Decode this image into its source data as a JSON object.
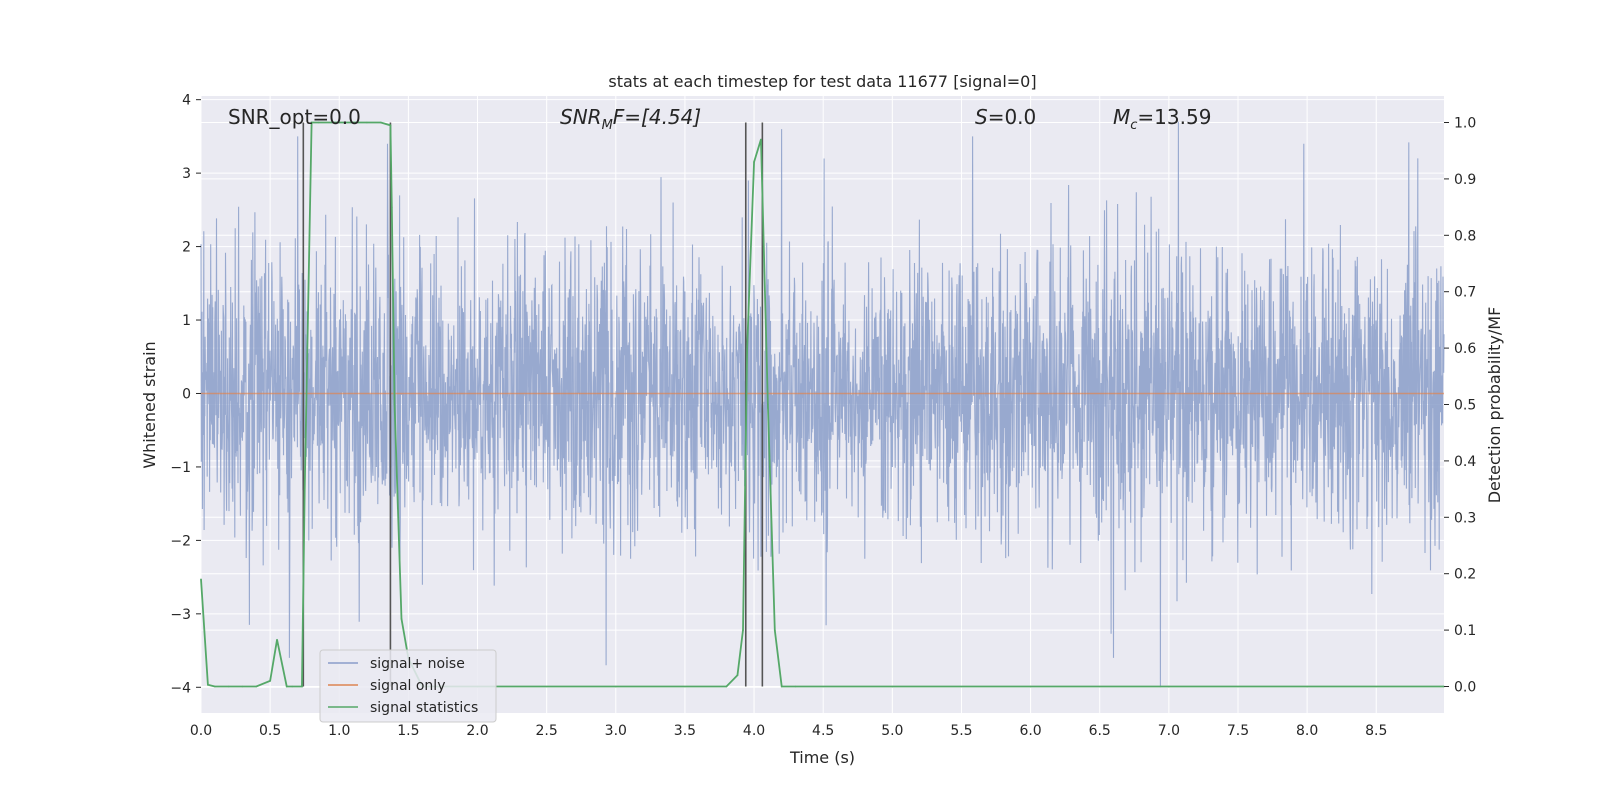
{
  "chart_data": {
    "type": "line",
    "title": "stats at each timestep for test data 11677 [signal=0]",
    "xlabel": "Time (s)",
    "ylabel": "Whitened strain",
    "ylabel_right": "Detection probability/MF",
    "xlim": [
      0.0,
      8.99
    ],
    "ylim_left": [
      -4.35,
      4.05
    ],
    "ylim_right": [
      -0.047,
      1.047
    ],
    "x_ticks": [
      "0.0",
      "0.5",
      "1.0",
      "1.5",
      "2.0",
      "2.5",
      "3.0",
      "3.5",
      "4.0",
      "4.5",
      "5.0",
      "5.5",
      "6.0",
      "6.5",
      "7.0",
      "7.5",
      "8.0",
      "8.5"
    ],
    "y_ticks_left": [
      "4",
      "3",
      "2",
      "1",
      "0",
      "−1",
      "−2",
      "−3",
      "−4"
    ],
    "y_ticks_right": [
      "1.0",
      "0.9",
      "0.8",
      "0.7",
      "0.6",
      "0.5",
      "0.4",
      "0.3",
      "0.2",
      "0.1",
      "0.0"
    ],
    "grid": true,
    "legend_position": "lower-left",
    "annotations": {
      "snr_opt": "SNR_opt=0.0",
      "snr_mf_main": "SNR",
      "snr_mf_sub": "M",
      "snr_mf_rest": "F=[4.54]",
      "s_main": "S",
      "s_rest": "=0.0",
      "mc_main": "M",
      "mc_sub": "c",
      "mc_rest": "=13.59"
    },
    "series": [
      {
        "name": "signal+ noise",
        "color": "#8a9dc9",
        "description": "whitened noise, approx. +/-1.7 sigma envelope, spikes to about +3.7 and -4.0",
        "envelope": [
          -1.7,
          1.4
        ],
        "spike_max": 3.7,
        "spike_min": -4.0,
        "spike_points": [
          [
            0.7,
            3.5
          ],
          [
            0.64,
            -3.6
          ],
          [
            1.35,
            3.4
          ],
          [
            2.93,
            -3.7
          ],
          [
            4.2,
            3.6
          ],
          [
            7.07,
            3.75
          ],
          [
            6.94,
            -4.0
          ],
          [
            3.96,
            2.9
          ],
          [
            5.58,
            3.5
          ],
          [
            6.6,
            -3.6
          ],
          [
            8.8,
            3.2
          ],
          [
            0.35,
            -3.15
          ]
        ]
      },
      {
        "name": "signal only",
        "color": "#dd8452",
        "x": [
          0.0,
          8.99
        ],
        "y": [
          0.0,
          0.0
        ]
      },
      {
        "name": "signal statistics",
        "color": "#55a868",
        "x": [
          0.0,
          0.05,
          0.1,
          0.2,
          0.3,
          0.4,
          0.5,
          0.55,
          0.62,
          0.66,
          0.73,
          0.75,
          0.8,
          0.85,
          1.0,
          1.2,
          1.3,
          1.37,
          1.38,
          1.4,
          1.45,
          1.5,
          1.6,
          2.0,
          3.0,
          3.8,
          3.88,
          3.92,
          3.95,
          4.0,
          4.05,
          4.1,
          4.15,
          4.2,
          4.3,
          5.0,
          6.0,
          7.0,
          8.0,
          8.99
        ],
        "y": [
          0.19,
          0.003,
          0.0,
          0.0,
          0.0,
          0.0,
          0.01,
          0.083,
          0.0,
          0.0,
          0.0,
          0.35,
          1.0,
          1.0,
          1.0,
          1.0,
          1.0,
          0.995,
          0.85,
          0.5,
          0.12,
          0.05,
          0.0,
          0.0,
          0.0,
          0.0,
          0.02,
          0.1,
          0.6,
          0.93,
          0.97,
          0.5,
          0.1,
          0.0,
          0.0,
          0.0,
          0.0,
          0.0,
          0.0,
          0.0
        ]
      }
    ],
    "vertical_lines_x": [
      0.74,
      1.37,
      3.94,
      4.06
    ],
    "vertical_line_color": "#555555"
  }
}
